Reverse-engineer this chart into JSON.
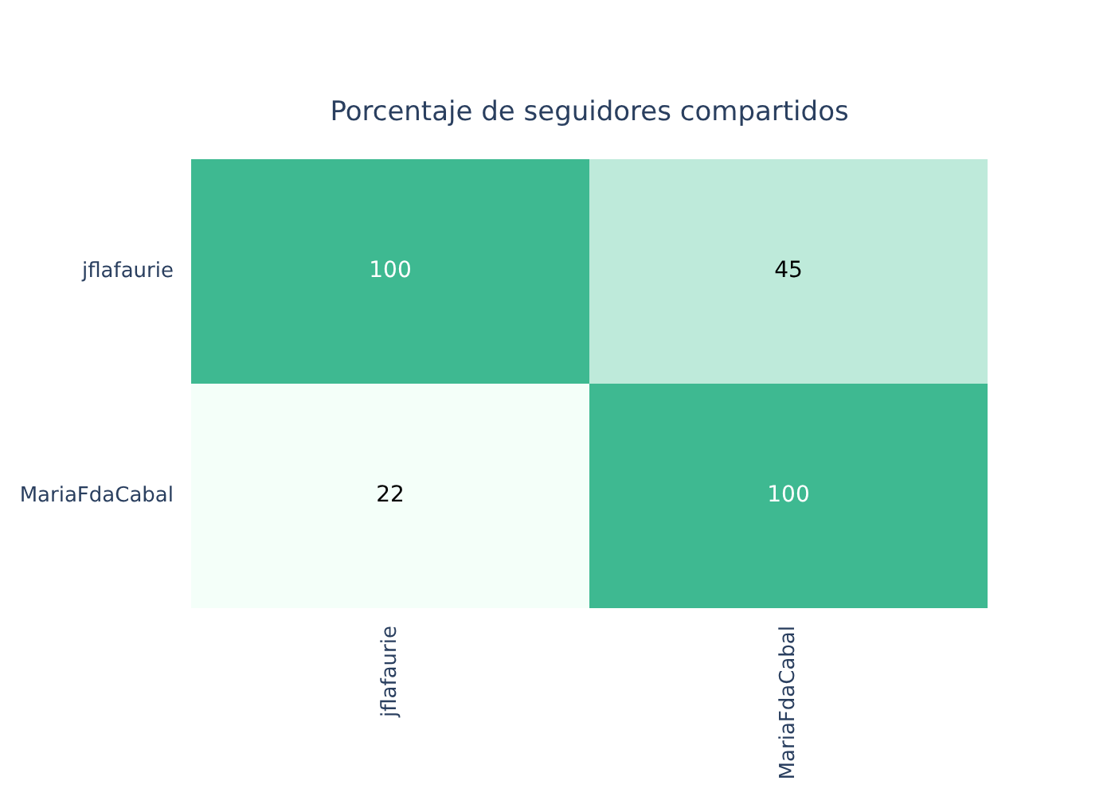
{
  "chart_data": {
    "type": "heatmap",
    "title": "Porcentaje de seguidores compartidos",
    "categories": [
      "jflafaurie",
      "MariaFdaCabal"
    ],
    "y_categories": [
      "jflafaurie",
      "MariaFdaCabal"
    ],
    "cells": [
      [
        100,
        45
      ],
      [
        22,
        100
      ]
    ],
    "data_labels": true
  }
}
